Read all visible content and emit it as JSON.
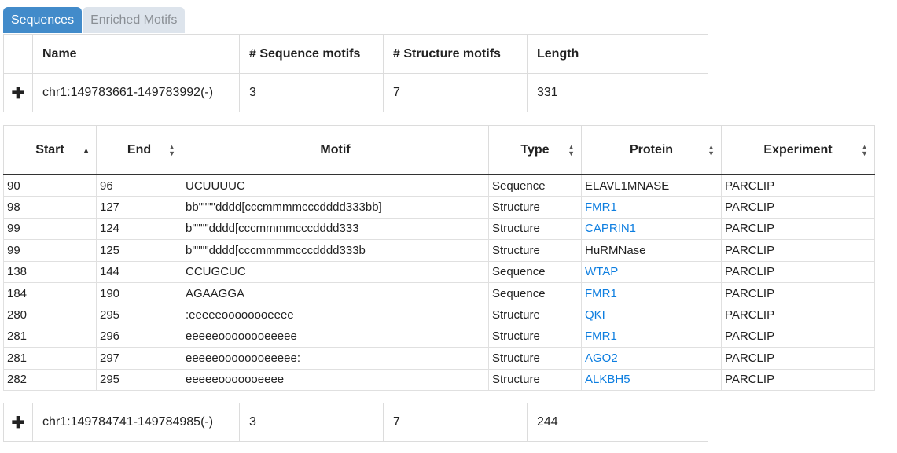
{
  "tabs": [
    {
      "label": "Sequences",
      "active": true
    },
    {
      "label": "Enriched Motifs",
      "active": false
    }
  ],
  "sequence_table": {
    "headers": [
      "Name",
      "# Sequence motifs",
      "# Structure motifs",
      "Length"
    ],
    "rows": [
      {
        "expand": "✚",
        "name": "chr1:149783661-149783992(-)",
        "seq_motifs": "3",
        "struct_motifs": "7",
        "length": "331"
      },
      {
        "expand": "✚",
        "name": "chr1:149784741-149784985(-)",
        "seq_motifs": "3",
        "struct_motifs": "7",
        "length": "244"
      }
    ]
  },
  "motif_table": {
    "headers": [
      "Start",
      "End",
      "Motif",
      "Type",
      "Protein",
      "Experiment"
    ],
    "sort_column": "Start",
    "rows": [
      {
        "start": "90",
        "end": "96",
        "motif": "UCUUUUC",
        "type": "Sequence",
        "protein": "ELAVL1MNASE",
        "protein_link": false,
        "experiment": "PARCLIP"
      },
      {
        "start": "98",
        "end": "127",
        "motif": "bb\"\"\"\"dddd[cccmmmmcccdddd333bb]",
        "type": "Structure",
        "protein": "FMR1",
        "protein_link": true,
        "experiment": "PARCLIP"
      },
      {
        "start": "99",
        "end": "124",
        "motif": "b\"\"\"\"dddd[cccmmmmcccdddd333",
        "type": "Structure",
        "protein": "CAPRIN1",
        "protein_link": true,
        "experiment": "PARCLIP"
      },
      {
        "start": "99",
        "end": "125",
        "motif": "b\"\"\"\"dddd[cccmmmmcccdddd333b",
        "type": "Structure",
        "protein": "HuRMNase",
        "protein_link": false,
        "experiment": "PARCLIP"
      },
      {
        "start": "138",
        "end": "144",
        "motif": "CCUGCUC",
        "type": "Sequence",
        "protein": "WTAP",
        "protein_link": true,
        "experiment": "PARCLIP"
      },
      {
        "start": "184",
        "end": "190",
        "motif": "AGAAGGA",
        "type": "Sequence",
        "protein": "FMR1",
        "protein_link": true,
        "experiment": "PARCLIP"
      },
      {
        "start": "280",
        "end": "295",
        "motif": ":eeeeeoooooooeeee",
        "type": "Structure",
        "protein": "QKI",
        "protein_link": true,
        "experiment": "PARCLIP"
      },
      {
        "start": "281",
        "end": "296",
        "motif": "eeeeeoooooooeeeee",
        "type": "Structure",
        "protein": "FMR1",
        "protein_link": true,
        "experiment": "PARCLIP"
      },
      {
        "start": "281",
        "end": "297",
        "motif": "eeeeeoooooooeeeee:",
        "type": "Structure",
        "protein": "AGO2",
        "protein_link": true,
        "experiment": "PARCLIP"
      },
      {
        "start": "282",
        "end": "295",
        "motif": "eeeeeooooooeeee",
        "type": "Structure",
        "protein": "ALKBH5",
        "protein_link": true,
        "experiment": "PARCLIP"
      }
    ]
  },
  "colors": {
    "accent": "#428bca",
    "link": "#0d7ee0"
  },
  "icons": {
    "expand": "plus-icon",
    "sort": "sort-arrows-icon",
    "sort_asc": "sort-ascending-icon"
  }
}
